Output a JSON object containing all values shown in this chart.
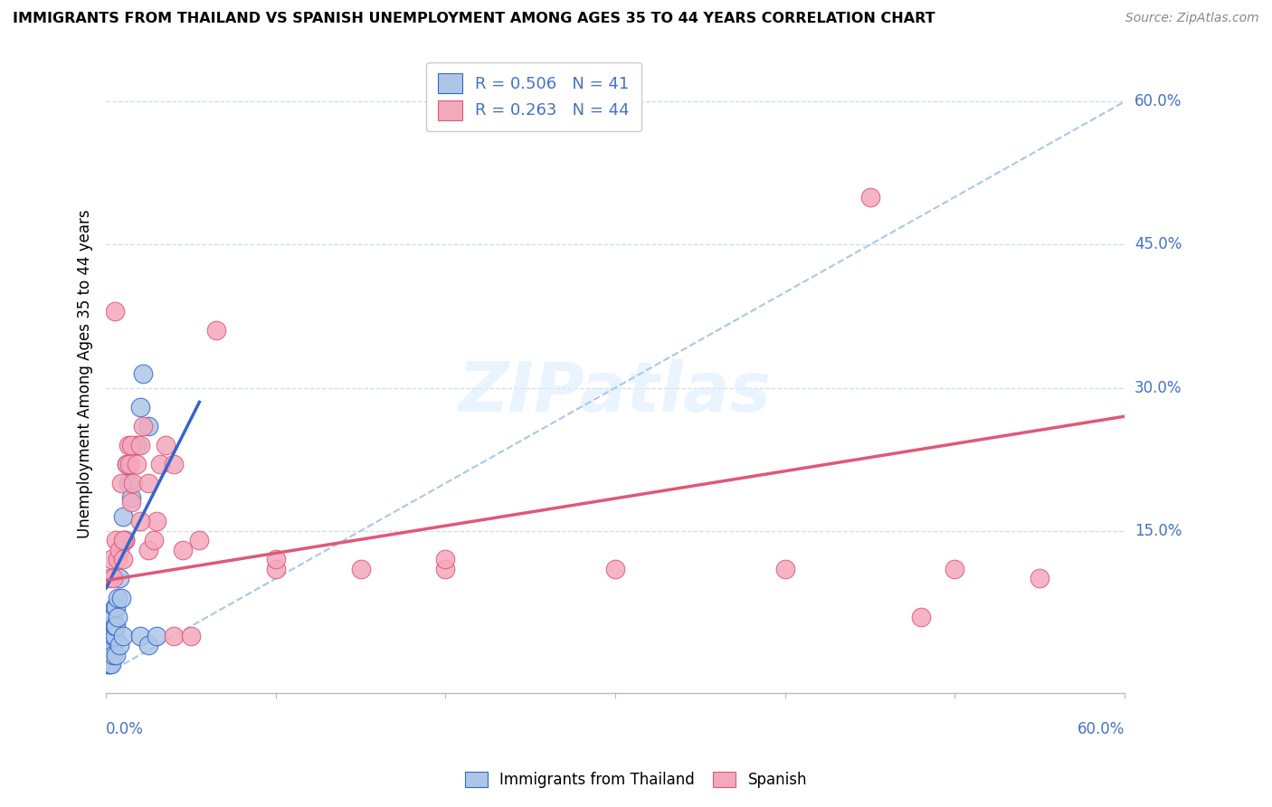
{
  "title": "IMMIGRANTS FROM THAILAND VS SPANISH UNEMPLOYMENT AMONG AGES 35 TO 44 YEARS CORRELATION CHART",
  "source": "Source: ZipAtlas.com",
  "ylabel": "Unemployment Among Ages 35 to 44 years",
  "legend_label1": "Immigrants from Thailand",
  "legend_label2": "Spanish",
  "r1": 0.506,
  "n1": 41,
  "r2": 0.263,
  "n2": 44,
  "color1": "#adc6e8",
  "color2": "#f4a8bc",
  "line1_color": "#3366cc",
  "line2_color": "#e05878",
  "diag_color": "#a8c8e8",
  "xlim": [
    0.0,
    0.6
  ],
  "ylim": [
    -0.02,
    0.65
  ],
  "th_line_x0": 0.0,
  "th_line_y0": 0.09,
  "th_line_x1": 0.055,
  "th_line_y1": 0.285,
  "sp_line_x0": 0.0,
  "sp_line_y0": 0.098,
  "sp_line_x1": 0.6,
  "sp_line_y1": 0.27,
  "thailand_x": [
    0.001,
    0.001,
    0.001,
    0.002,
    0.002,
    0.002,
    0.002,
    0.003,
    0.003,
    0.003,
    0.003,
    0.004,
    0.004,
    0.004,
    0.005,
    0.005,
    0.005,
    0.006,
    0.006,
    0.007,
    0.007,
    0.008,
    0.009,
    0.01,
    0.011,
    0.012,
    0.013,
    0.015,
    0.018,
    0.02,
    0.022,
    0.025,
    0.002,
    0.003,
    0.004,
    0.006,
    0.008,
    0.01,
    0.02,
    0.025,
    0.03
  ],
  "thailand_y": [
    0.01,
    0.02,
    0.03,
    0.01,
    0.02,
    0.03,
    0.04,
    0.02,
    0.03,
    0.04,
    0.05,
    0.03,
    0.04,
    0.06,
    0.04,
    0.05,
    0.07,
    0.05,
    0.07,
    0.06,
    0.08,
    0.1,
    0.08,
    0.165,
    0.14,
    0.22,
    0.2,
    0.185,
    0.24,
    0.28,
    0.315,
    0.26,
    0.01,
    0.01,
    0.02,
    0.02,
    0.03,
    0.04,
    0.04,
    0.03,
    0.04
  ],
  "spanish_x": [
    0.002,
    0.003,
    0.004,
    0.005,
    0.006,
    0.007,
    0.008,
    0.009,
    0.01,
    0.011,
    0.012,
    0.013,
    0.014,
    0.015,
    0.016,
    0.018,
    0.02,
    0.022,
    0.025,
    0.028,
    0.03,
    0.032,
    0.035,
    0.04,
    0.01,
    0.015,
    0.02,
    0.025,
    0.1,
    0.15,
    0.2,
    0.3,
    0.45,
    0.5,
    0.55,
    0.045,
    0.055,
    0.065,
    0.1,
    0.2,
    0.4,
    0.48,
    0.04,
    0.05
  ],
  "spanish_y": [
    0.1,
    0.12,
    0.1,
    0.38,
    0.14,
    0.12,
    0.13,
    0.2,
    0.12,
    0.14,
    0.22,
    0.24,
    0.22,
    0.24,
    0.2,
    0.22,
    0.24,
    0.26,
    0.13,
    0.14,
    0.16,
    0.22,
    0.24,
    0.22,
    0.14,
    0.18,
    0.16,
    0.2,
    0.11,
    0.11,
    0.11,
    0.11,
    0.5,
    0.11,
    0.1,
    0.13,
    0.14,
    0.36,
    0.12,
    0.12,
    0.11,
    0.06,
    0.04,
    0.04
  ]
}
